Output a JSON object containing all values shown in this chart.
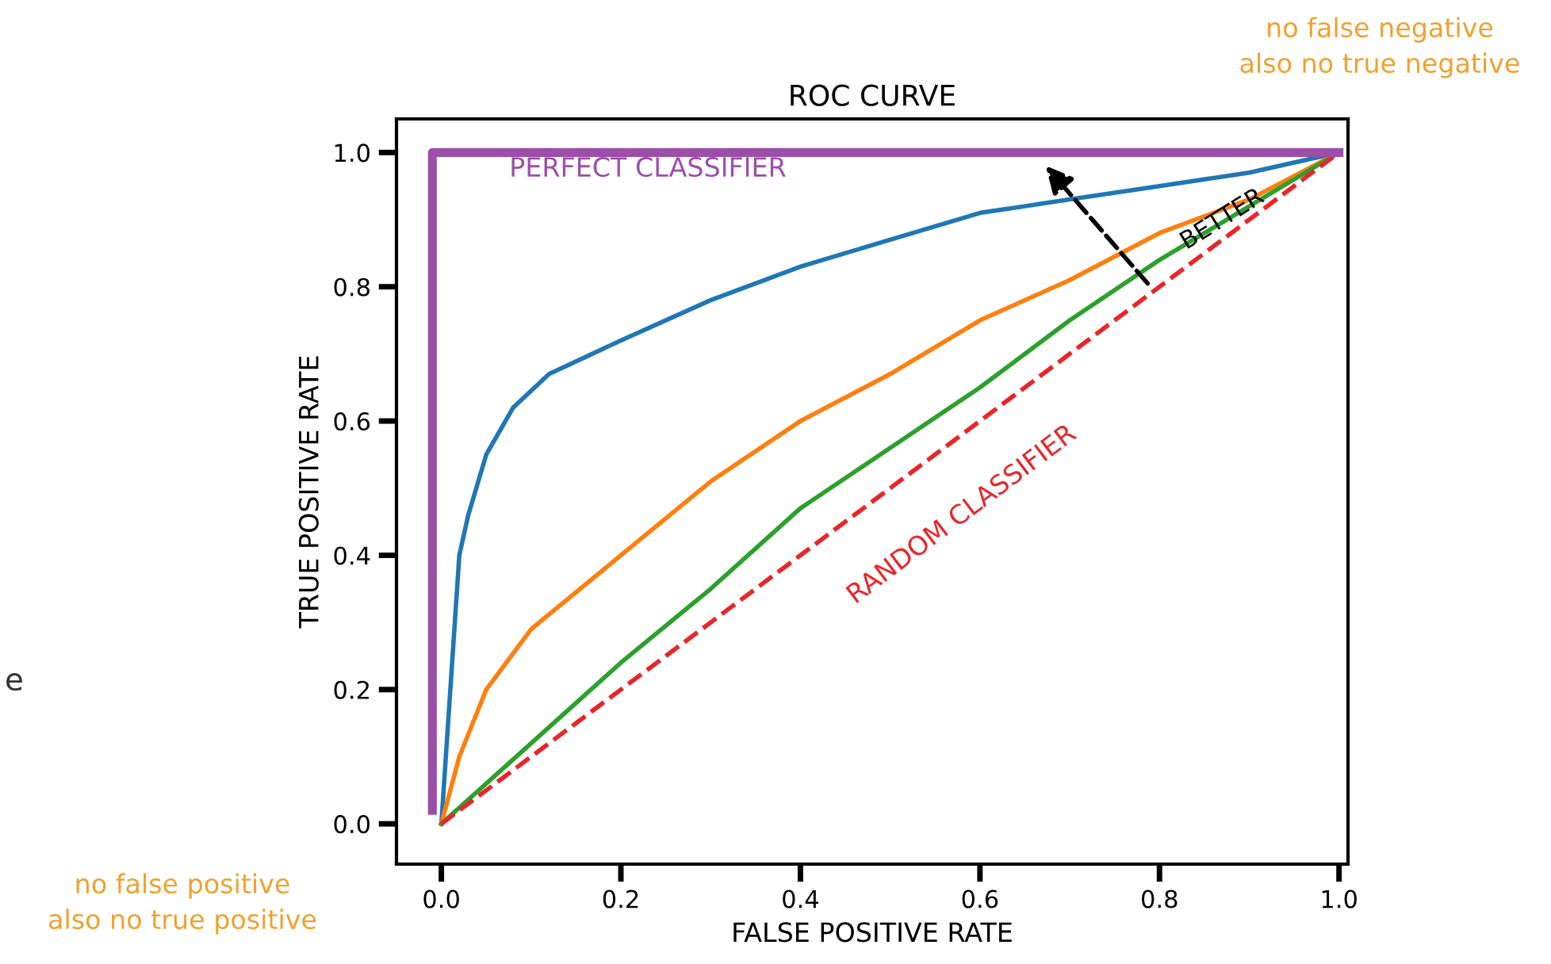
{
  "chart_data": {
    "type": "line",
    "title": "ROC CURVE",
    "xlabel": "FALSE POSITIVE RATE",
    "ylabel": "TRUE POSITIVE RATE",
    "xlim": [
      -0.05,
      1.01
    ],
    "ylim": [
      -0.06,
      1.05
    ],
    "xticks": [
      {
        "value": 0,
        "label": "0.0"
      },
      0.2,
      0.4,
      0.6,
      0.8,
      {
        "value": 1,
        "label": "1.0"
      }
    ],
    "yticks": [
      {
        "value": 0,
        "label": "0.0"
      },
      0.2,
      0.4,
      0.6,
      0.8,
      {
        "value": 1,
        "label": "1.0"
      }
    ],
    "series": [
      {
        "color": "#1f77b4",
        "line_style": "solid",
        "x": [
          0,
          0.01,
          0.02,
          0.03,
          0.05,
          0.08,
          0.12,
          0.2,
          0.3,
          0.4,
          0.5,
          0.6,
          0.7,
          0.8,
          0.9,
          1.0
        ],
        "values": [
          0,
          0.2,
          0.4,
          0.46,
          0.55,
          0.62,
          0.67,
          0.72,
          0.78,
          0.83,
          0.87,
          0.91,
          0.93,
          0.95,
          0.97,
          1.0
        ]
      },
      {
        "color": "#ff7f0e",
        "line_style": "solid",
        "x": [
          0,
          0.02,
          0.05,
          0.1,
          0.2,
          0.3,
          0.4,
          0.5,
          0.6,
          0.7,
          0.8,
          0.9,
          1.0
        ],
        "values": [
          0,
          0.1,
          0.2,
          0.29,
          0.4,
          0.51,
          0.6,
          0.67,
          0.75,
          0.81,
          0.88,
          0.93,
          1.0
        ]
      },
      {
        "color": "#2ca02c",
        "line_style": "solid",
        "x": [
          0,
          0.1,
          0.2,
          0.3,
          0.4,
          0.5,
          0.6,
          0.7,
          0.8,
          0.9,
          1.0
        ],
        "values": [
          0,
          0.12,
          0.24,
          0.35,
          0.47,
          0.56,
          0.65,
          0.75,
          0.84,
          0.92,
          1.0
        ]
      },
      {
        "color": "#e8262a",
        "line_style": "dashed",
        "x": [
          0,
          1.0
        ],
        "values": [
          0,
          1.0
        ]
      },
      {
        "color": "#9b4fa8",
        "line_style": "solid",
        "x": [
          -0.01,
          -0.01,
          1.0
        ],
        "values": [
          0.02,
          1.0,
          1.0
        ]
      }
    ],
    "annotations": [
      "PERFECT CLASSIFIER",
      "RANDOM CLASSIFIER",
      "BETTER",
      "no false negative\nalso no true negative",
      "no false positive\nalso no true positive",
      "e"
    ]
  }
}
